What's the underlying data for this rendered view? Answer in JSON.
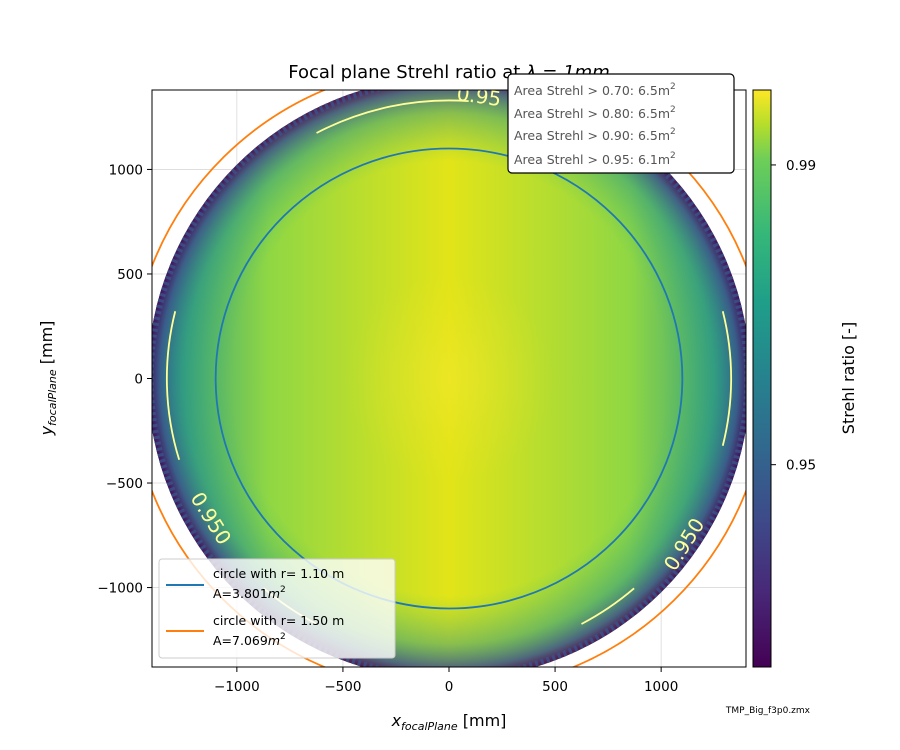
{
  "chart_data": {
    "type": "heatmap",
    "title_prefix": "Focal plane Strehl ratio at ",
    "title_symbol": "λ = 1mm",
    "xlabel_main": "x",
    "xlabel_sub": "focalPlane",
    "xlabel_unit": " [mm]",
    "ylabel_main": "y",
    "ylabel_sub": "focalPlane",
    "ylabel_unit": " [mm]",
    "xlim": [
      -1400,
      1400
    ],
    "ylim": [
      -1380,
      1380
    ],
    "xticks": [
      -1000,
      -500,
      0,
      500,
      1000
    ],
    "xtick_labels": [
      "−1000",
      "−500",
      "0",
      "500",
      "1000"
    ],
    "yticks": [
      -1000,
      -500,
      0,
      500,
      1000
    ],
    "ytick_labels": [
      "−1000",
      "−500",
      "0",
      "500",
      "1000"
    ],
    "grid": true,
    "colorbar": {
      "label": "Strehl ratio [-]",
      "min": 0.923,
      "max": 1.0,
      "ticks": [
        0.95,
        0.99
      ],
      "tick_labels": [
        "0.95",
        "0.99"
      ],
      "colormap": "viridis"
    },
    "field_radius": 1420,
    "contour_level_label": "0.950",
    "contour_label_partial": "0.95",
    "circles": [
      {
        "label_line1": "circle with r= 1.10 m",
        "area_prefix": "A=3.801",
        "area_unit": "m",
        "area_exp": "2",
        "radius": 1100,
        "color": "#1f77b4"
      },
      {
        "label_line1": "circle with r= 1.50 m",
        "area_prefix": "A=7.069",
        "area_unit": "m",
        "area_exp": "2",
        "radius": 1500,
        "color": "#ff7f0e"
      }
    ],
    "annotations": [
      {
        "text": "Area Strehl > 0.70: 6.5m",
        "sup": "2"
      },
      {
        "text": "Area Strehl > 0.80: 6.5m",
        "sup": "2"
      },
      {
        "text": "Area Strehl > 0.90: 6.5m",
        "sup": "2"
      },
      {
        "text": "Area Strehl > 0.95: 6.1m",
        "sup": "2"
      }
    ],
    "legend_placement": "lower-left",
    "annotation_placement": "upper-right"
  },
  "footer": "TMP_Big_f3p0.zmx"
}
